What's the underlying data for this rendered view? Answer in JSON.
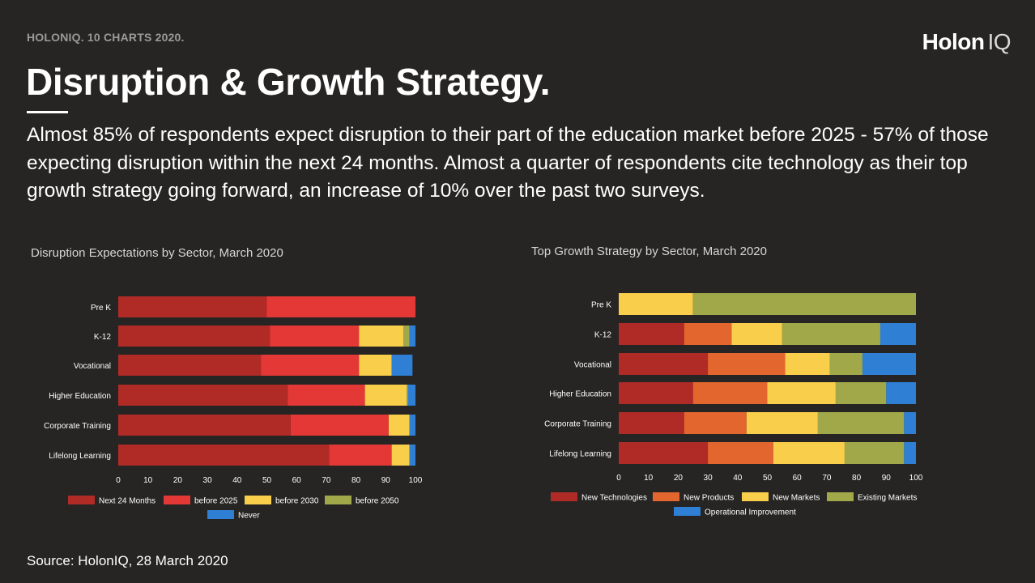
{
  "header": {
    "kicker": "HOLONIQ. 10 CHARTS 2020.",
    "logo_main": "Holon",
    "logo_suffix": "IQ",
    "title": "Disruption & Growth Strategy.",
    "intro": "Almost 85% of respondents expect disruption to their part of the education market before 2025 - 57% of those expecting disruption within the next 24 months. Almost a quarter of respondents cite technology as their top growth strategy going forward, an increase of 10% over the past two surveys."
  },
  "footer": {
    "source": "Source: HolonIQ, 28 March 2020"
  },
  "chart_data": [
    {
      "type": "bar",
      "orientation": "horizontal",
      "stacked": true,
      "title": "Disruption Expectations by Sector, March 2020",
      "categories": [
        "Pre K",
        "K-12",
        "Vocational",
        "Higher Education",
        "Corporate Training",
        "Lifelong Learning"
      ],
      "xlim": [
        0,
        100
      ],
      "xticks": [
        0,
        10,
        20,
        30,
        40,
        50,
        60,
        70,
        80,
        90,
        100
      ],
      "legend_position": "bottom",
      "series": [
        {
          "name": "Next 24 Months",
          "color": "#b02a26",
          "values": [
            50,
            51,
            48,
            57,
            58,
            71
          ]
        },
        {
          "name": "before 2025",
          "color": "#e33835",
          "values": [
            50,
            30,
            33,
            26,
            33,
            21
          ]
        },
        {
          "name": "before 2030",
          "color": "#f9ce4b",
          "values": [
            0,
            15,
            11,
            14,
            7,
            6
          ]
        },
        {
          "name": "before 2050",
          "color": "#a1a849",
          "values": [
            0,
            2,
            0,
            0.5,
            0,
            0
          ]
        },
        {
          "name": "Never",
          "color": "#2f80d4",
          "values": [
            0,
            2,
            7,
            2.5,
            2,
            2
          ]
        }
      ]
    },
    {
      "type": "bar",
      "orientation": "horizontal",
      "stacked": true,
      "title": "Top Growth Strategy by Sector, March 2020",
      "categories": [
        "Pre K",
        "K-12",
        "Vocational",
        "Higher Education",
        "Corporate Training",
        "Lifelong Learning"
      ],
      "xlim": [
        0,
        100
      ],
      "xticks": [
        0,
        10,
        20,
        30,
        40,
        50,
        60,
        70,
        80,
        90,
        100
      ],
      "legend_position": "bottom",
      "series": [
        {
          "name": "New Technologies",
          "color": "#b02a26",
          "values": [
            0,
            22,
            30,
            25,
            22,
            30
          ]
        },
        {
          "name": "New Products",
          "color": "#e3662f",
          "values": [
            0,
            16,
            26,
            25,
            21,
            22
          ]
        },
        {
          "name": "New Markets",
          "color": "#f9ce4b",
          "values": [
            25,
            17,
            15,
            23,
            24,
            24
          ]
        },
        {
          "name": "Existing Markets",
          "color": "#a1a849",
          "values": [
            75,
            33,
            11,
            17,
            29,
            20
          ]
        },
        {
          "name": "Operational Improvement",
          "color": "#2f80d4",
          "values": [
            0,
            12,
            18,
            10,
            4,
            4
          ]
        }
      ]
    }
  ]
}
